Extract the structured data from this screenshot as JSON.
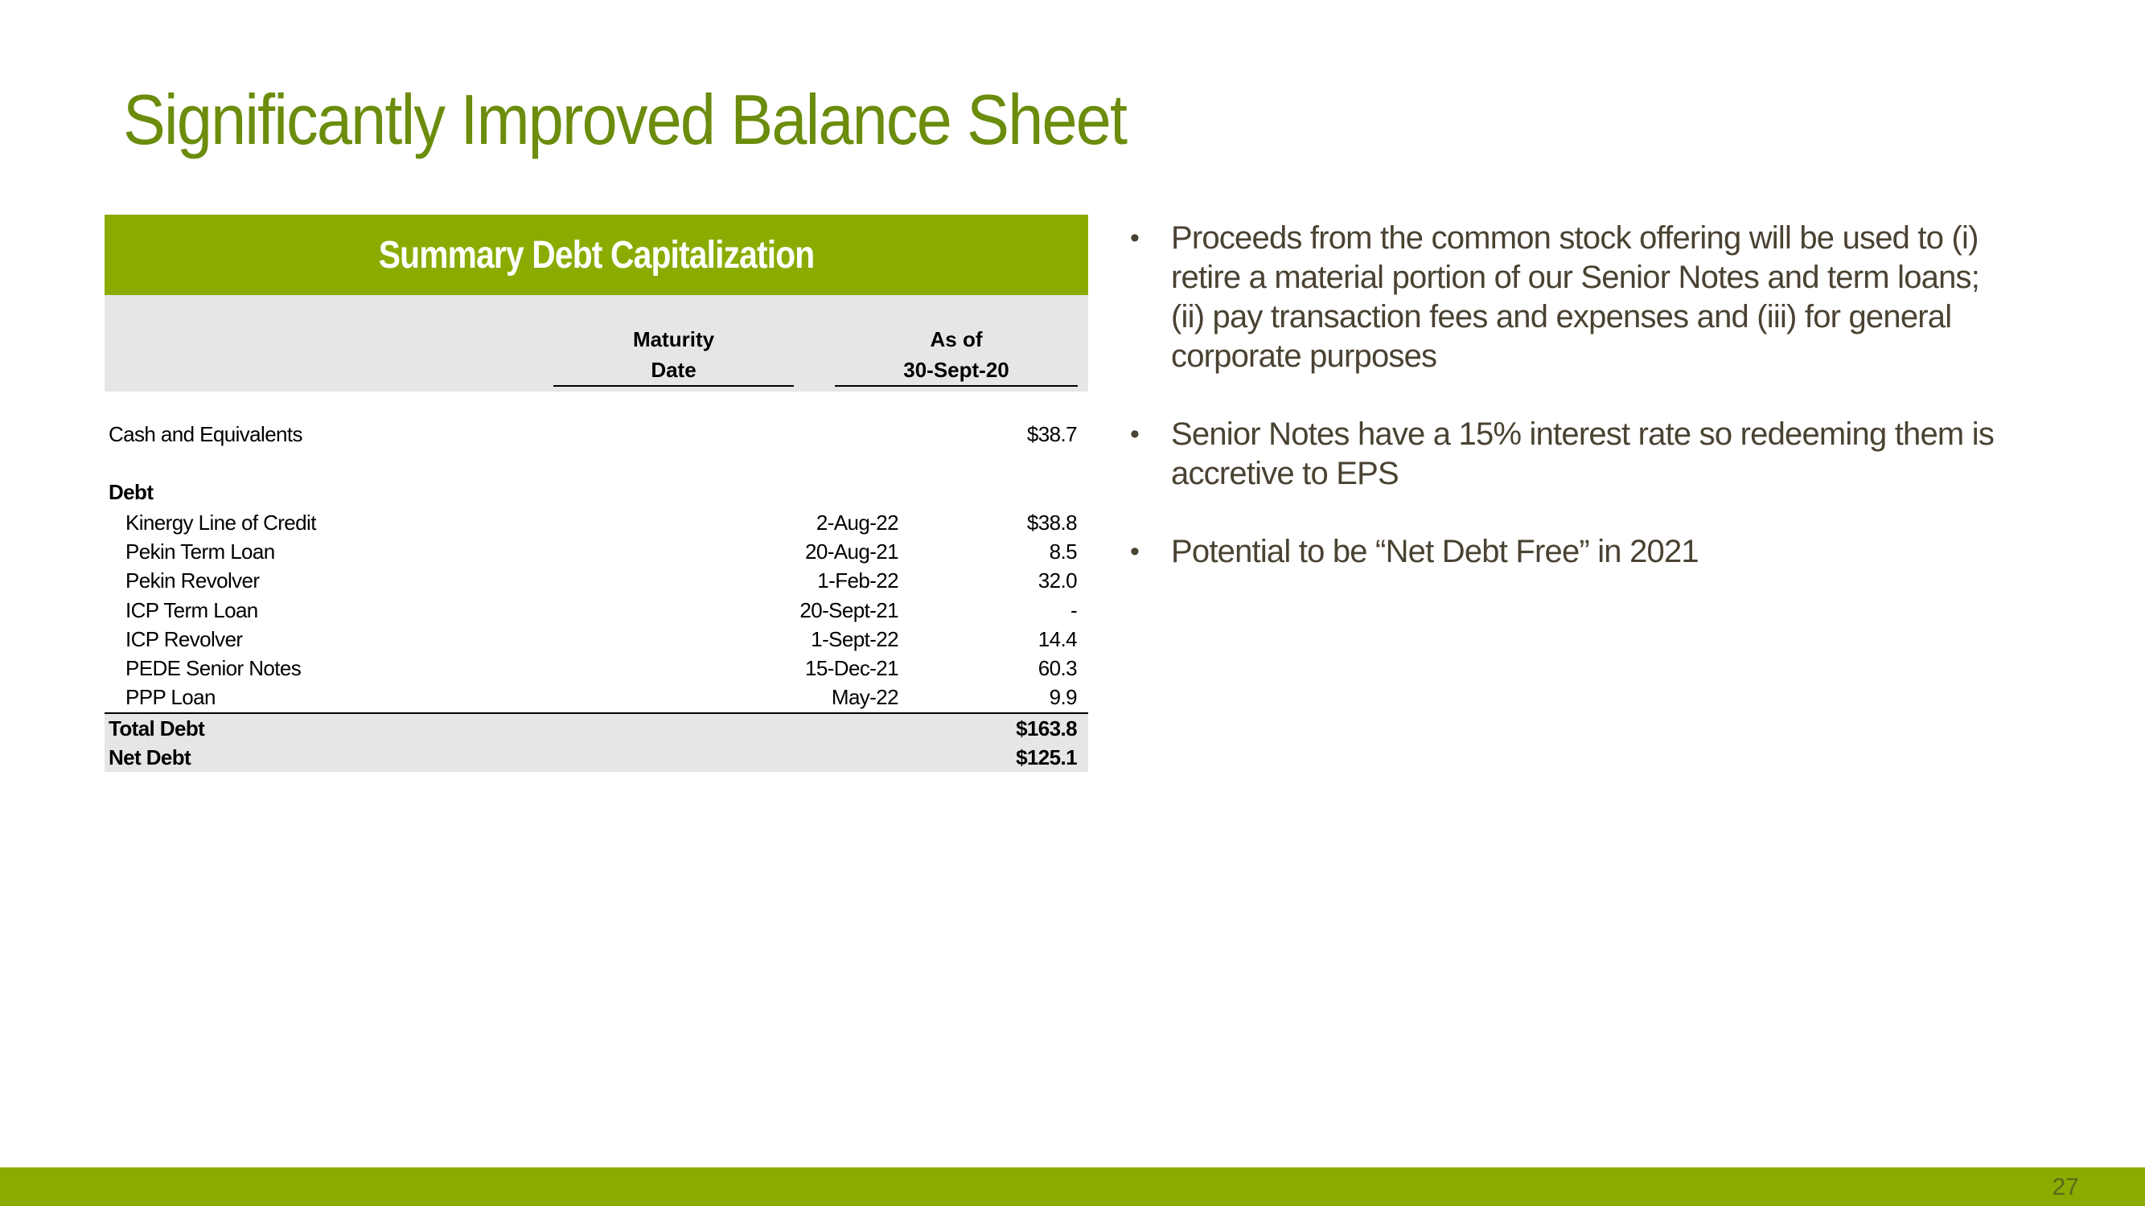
{
  "title": "Significantly Improved Balance Sheet",
  "table": {
    "title": "Summary Debt Capitalization",
    "columns": {
      "maturity": [
        "Maturity",
        "Date"
      ],
      "as_of": [
        "As of",
        "30-Sept-20"
      ]
    },
    "cash": {
      "label": "Cash and Equivalents",
      "amount": "$38.7"
    },
    "debt_label": "Debt",
    "debt_rows": [
      {
        "label": "Kinergy Line of Credit",
        "date": "2-Aug-22",
        "amount": "$38.8"
      },
      {
        "label": "Pekin Term Loan",
        "date": "20-Aug-21",
        "amount": "8.5"
      },
      {
        "label": "Pekin Revolver",
        "date": "1-Feb-22",
        "amount": "32.0"
      },
      {
        "label": "ICP Term Loan",
        "date": "20-Sept-21",
        "amount": "-"
      },
      {
        "label": "ICP Revolver",
        "date": "1-Sept-22",
        "amount": "14.4"
      },
      {
        "label": "PEDE Senior Notes",
        "date": "15-Dec-21",
        "amount": "60.3"
      },
      {
        "label": "PPP Loan",
        "date": "May-22",
        "amount": "9.9"
      }
    ],
    "total_debt": {
      "label": "Total Debt",
      "amount": "$163.8"
    },
    "net_debt": {
      "label": "Net Debt",
      "amount": "$125.1"
    }
  },
  "bullets": [
    "Proceeds from the common stock offering will be used to (i) retire a material portion of our Senior Notes and term loans; (ii) pay transaction fees and expenses and (iii) for general corporate purposes",
    "Senior Notes have a 15% interest rate so redeeming them is accretive to EPS",
    "Potential to be “Net Debt Free” in 2021"
  ],
  "bullet_char": "•",
  "page_number": "27",
  "colors": {
    "accent": "#8aac00",
    "title": "#6b8c0c",
    "body_text": "#4a4232",
    "band": "#e6e6e6"
  }
}
